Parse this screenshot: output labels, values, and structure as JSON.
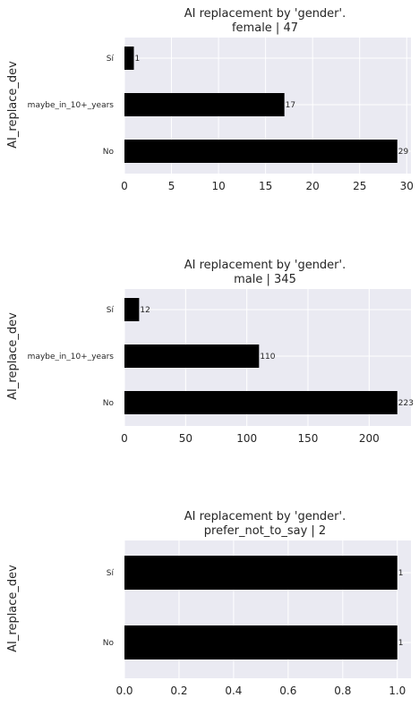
{
  "chart_data": [
    {
      "type": "bar",
      "orientation": "horizontal",
      "title": "AI replacement by 'gender'.",
      "subtitle": "female | 47",
      "ylabel": "AI_replace_dev",
      "xlabel": "",
      "categories": [
        "Sí",
        "maybe_in_10+_years",
        "No"
      ],
      "values": [
        1,
        17,
        29
      ],
      "data_labels": [
        "1",
        "17",
        "29"
      ],
      "xlim": [
        0,
        30.45
      ],
      "xticks": [
        0,
        5,
        10,
        15,
        20,
        25,
        30
      ],
      "xtick_labels": [
        "0",
        "5",
        "10",
        "15",
        "20",
        "25",
        "30"
      ],
      "grid": true,
      "bar_color": "#000000"
    },
    {
      "type": "bar",
      "orientation": "horizontal",
      "title": "AI replacement by 'gender'.",
      "subtitle": "male | 345",
      "ylabel": "AI_replace_dev",
      "xlabel": "",
      "categories": [
        "Sí",
        "maybe_in_10+_years",
        "No"
      ],
      "values": [
        12,
        110,
        223
      ],
      "data_labels": [
        "12",
        "110",
        "223"
      ],
      "xlim": [
        0,
        234.15
      ],
      "xticks": [
        0,
        50,
        100,
        150,
        200
      ],
      "xtick_labels": [
        "0",
        "50",
        "100",
        "150",
        "200"
      ],
      "grid": true,
      "bar_color": "#000000"
    },
    {
      "type": "bar",
      "orientation": "horizontal",
      "title": "AI replacement by 'gender'.",
      "subtitle": "prefer_not_to_say | 2",
      "ylabel": "AI_replace_dev",
      "xlabel": "",
      "categories": [
        "Sí",
        "No"
      ],
      "values": [
        1,
        1
      ],
      "data_labels": [
        "1",
        "1"
      ],
      "xlim": [
        0,
        1.05
      ],
      "xticks": [
        0,
        0.2,
        0.4,
        0.6,
        0.8,
        1.0
      ],
      "xtick_labels": [
        "0.0",
        "0.2",
        "0.4",
        "0.6",
        "0.8",
        "1.0"
      ],
      "grid": true,
      "bar_color": "#000000"
    }
  ],
  "colors": {
    "plot_background": "#eaeaf2",
    "grid": "#ffffff",
    "bar": "#000000",
    "text": "#262626"
  }
}
